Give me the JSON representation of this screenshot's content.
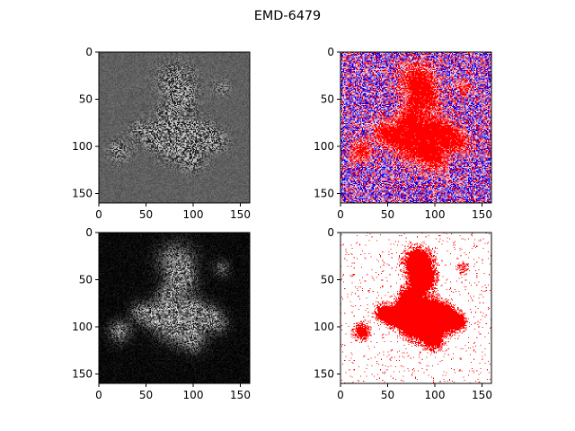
{
  "figure": {
    "title": "EMD-6479"
  },
  "chart_data": [
    {
      "type": "heatmap",
      "panel": "top-left",
      "colormap": "gray",
      "xlim": [
        0,
        160
      ],
      "ylim": [
        160,
        0
      ],
      "xticks": [
        0,
        50,
        100,
        150
      ],
      "yticks": [
        0,
        50,
        100,
        150
      ],
      "xtick_labels": [
        "0",
        "50",
        "100",
        "150"
      ],
      "ytick_labels": [
        "0",
        "50",
        "100",
        "150"
      ]
    },
    {
      "type": "heatmap",
      "panel": "top-right",
      "colormap": "bwr",
      "xlim": [
        0,
        160
      ],
      "ylim": [
        160,
        0
      ],
      "xticks": [
        0,
        50,
        100,
        150
      ],
      "yticks": [
        0,
        50,
        100,
        150
      ],
      "xtick_labels": [
        "0",
        "50",
        "100",
        "150"
      ],
      "ytick_labels": [
        "0",
        "50",
        "100",
        "150"
      ]
    },
    {
      "type": "heatmap",
      "panel": "bottom-left",
      "colormap": "gray",
      "xlim": [
        0,
        160
      ],
      "ylim": [
        160,
        0
      ],
      "xticks": [
        0,
        50,
        100,
        150
      ],
      "yticks": [
        0,
        50,
        100,
        150
      ],
      "xtick_labels": [
        "0",
        "50",
        "100",
        "150"
      ],
      "ytick_labels": [
        "0",
        "50",
        "100",
        "150"
      ]
    },
    {
      "type": "heatmap",
      "panel": "bottom-right",
      "colormap": "red-on-white",
      "xlim": [
        0,
        160
      ],
      "ylim": [
        160,
        0
      ],
      "xticks": [
        0,
        50,
        100,
        150
      ],
      "yticks": [
        0,
        50,
        100,
        150
      ],
      "xtick_labels": [
        "0",
        "50",
        "100",
        "150"
      ],
      "ytick_labels": [
        "0",
        "50",
        "100",
        "150"
      ]
    }
  ]
}
